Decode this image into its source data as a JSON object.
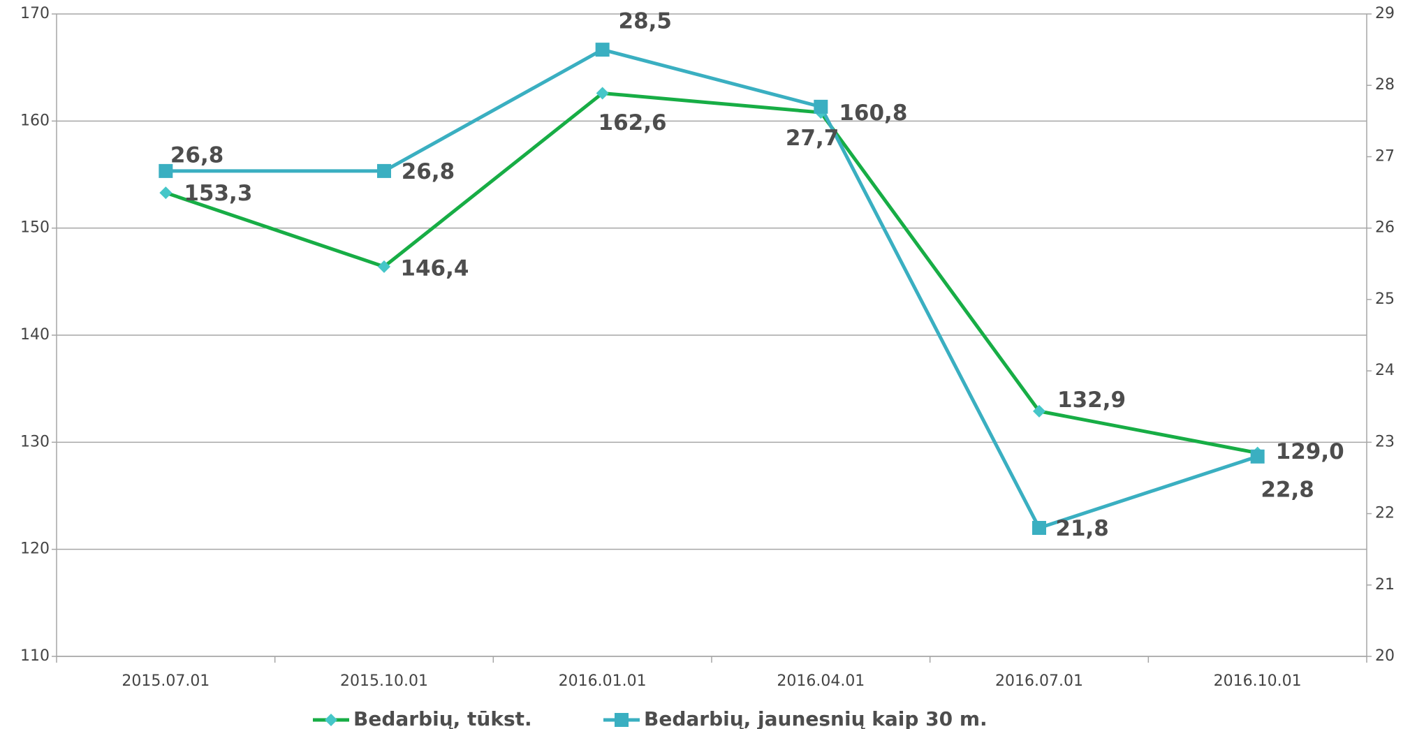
{
  "chart_data": {
    "type": "line",
    "categories": [
      "2015.07.01",
      "2015.10.01",
      "2016.01.01",
      "2016.04.01",
      "2016.07.01",
      "2016.10.01"
    ],
    "series": [
      {
        "name": "Bedarbių, tūkst.",
        "color": "#17ad45",
        "marker": "diamond",
        "marker_color": "#45c6c8",
        "values": [
          153.3,
          146.4,
          162.6,
          160.8,
          132.9,
          129.0
        ],
        "value_labels": [
          "153,3",
          "146,4",
          "162,6",
          "160,8",
          "132,9",
          "129,0"
        ]
      },
      {
        "name": "Bedarbių, jaunesnių kaip 30 m.",
        "color": "#3aafc1",
        "marker": "square",
        "marker_color": "#3aafc1",
        "axis": "y2",
        "values": [
          26.8,
          26.8,
          28.5,
          27.7,
          21.8,
          22.8
        ],
        "value_labels": [
          "26,8",
          "26,8",
          "28,5",
          "27,7",
          "21,8",
          "22,8"
        ]
      }
    ],
    "ylim": [
      110,
      170
    ],
    "yticks": [
      110,
      120,
      130,
      140,
      150,
      160,
      170
    ],
    "y2lim": [
      20,
      29
    ],
    "y2ticks": [
      20,
      21,
      22,
      23,
      24,
      25,
      26,
      27,
      28,
      29
    ],
    "grid": true,
    "legend": "bottom"
  }
}
